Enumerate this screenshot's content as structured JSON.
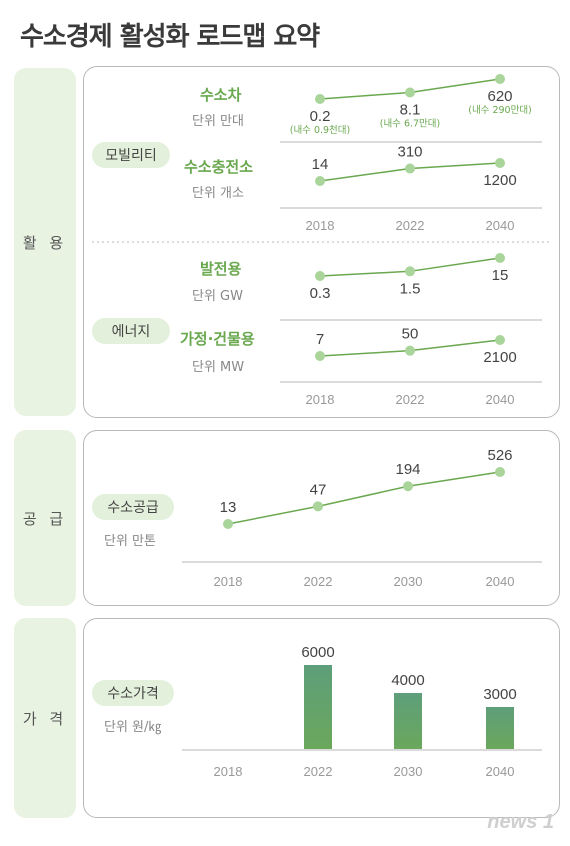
{
  "title": "수소경제 활성화 로드맵 요약",
  "categories": {
    "use": "활 용",
    "supply": "공 급",
    "price": "가 격"
  },
  "groups": {
    "mobility": "모빌리티",
    "energy": "에너지",
    "supply": "수소공급",
    "price": "수소가격"
  },
  "units": {
    "supply": "단위 만톤",
    "price": "단위 원/㎏"
  },
  "watermark": "news 1",
  "colors": {
    "accent": "#6aa84f",
    "bar_top": "#5e9e7a",
    "bar_bottom": "#6aa85c",
    "pill": "#e3f1dc"
  },
  "chart_data": [
    {
      "id": "vehicles",
      "type": "line",
      "title": "수소차",
      "unit": "단위 만대",
      "x": [
        "2018",
        "2022",
        "2040"
      ],
      "values": [
        0.2,
        8.1,
        620
      ],
      "labels": [
        "0.2",
        "8.1",
        "620"
      ],
      "sublabels": [
        "(내수 0.9천대)",
        "(내수 6.7만대)",
        "(내수 290만대)"
      ]
    },
    {
      "id": "stations",
      "type": "line",
      "title": "수소충전소",
      "unit": "단위 개소",
      "x": [
        "2018",
        "2022",
        "2040"
      ],
      "values": [
        14,
        310,
        1200
      ],
      "labels": [
        "14",
        "310",
        "1200"
      ]
    },
    {
      "id": "power",
      "type": "line",
      "title": "발전용",
      "unit": "단위 GW",
      "x": [
        "2018",
        "2022",
        "2040"
      ],
      "values": [
        0.3,
        1.5,
        15
      ],
      "labels": [
        "0.3",
        "1.5",
        "15"
      ]
    },
    {
      "id": "building",
      "type": "line",
      "title": "가정·건물용",
      "unit": "단위 MW",
      "x": [
        "2018",
        "2022",
        "2040"
      ],
      "values": [
        7,
        50,
        2100
      ],
      "labels": [
        "7",
        "50",
        "2100"
      ]
    },
    {
      "id": "supply",
      "type": "line",
      "title": "수소공급",
      "unit": "단위 만톤",
      "x": [
        "2018",
        "2022",
        "2030",
        "2040"
      ],
      "values": [
        13,
        47,
        194,
        526
      ],
      "labels": [
        "13",
        "47",
        "194",
        "526"
      ]
    },
    {
      "id": "price",
      "type": "bar",
      "title": "수소가격",
      "unit": "단위 원/㎏",
      "categories": [
        "2018",
        "2022",
        "2030",
        "2040"
      ],
      "values": [
        null,
        6000,
        4000,
        3000
      ],
      "labels": [
        "",
        "6000",
        "4000",
        "3000"
      ]
    }
  ]
}
